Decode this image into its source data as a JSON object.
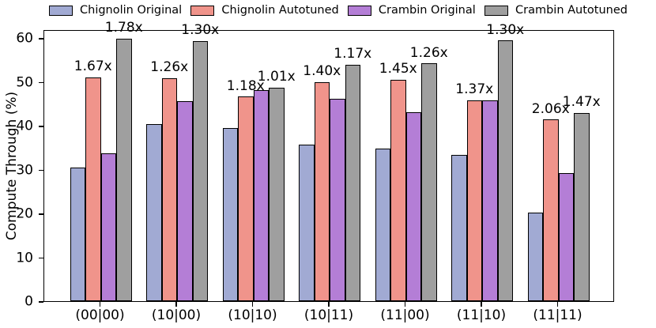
{
  "chart_data": {
    "type": "bar",
    "title": "",
    "xlabel": "",
    "ylabel": "Compute Through (%)",
    "ylim": [
      0,
      62
    ],
    "yticks": [
      0,
      10,
      20,
      30,
      40,
      50,
      60
    ],
    "grid": false,
    "legend_position": "top",
    "bar_edge_color": "#000000",
    "categories": [
      "(00|00)",
      "(10|00)",
      "(10|10)",
      "(10|11)",
      "(11|00)",
      "(11|10)",
      "(11|11)"
    ],
    "series": [
      {
        "name": "Chignolin Original",
        "color": "#a1aad3",
        "values": [
          30.5,
          40.3,
          39.5,
          35.7,
          34.8,
          33.4,
          20.1
        ]
      },
      {
        "name": "Chignolin Autotuned",
        "color": "#f0948b",
        "values": [
          51.0,
          50.8,
          46.6,
          50.0,
          50.5,
          45.8,
          41.4
        ]
      },
      {
        "name": "Crambin Original",
        "color": "#b47ed6",
        "values": [
          33.7,
          45.6,
          48.2,
          46.1,
          43.0,
          45.7,
          29.2
        ]
      },
      {
        "name": "Crambin Autotuned",
        "color": "#9f9f9f",
        "values": [
          59.9,
          59.3,
          48.7,
          53.9,
          54.2,
          59.4,
          42.9
        ]
      }
    ],
    "annotations": [
      {
        "over_series": 1,
        "labels": [
          "1.67x",
          "1.26x",
          "1.18x",
          "1.40x",
          "1.45x",
          "1.37x",
          "2.06x"
        ]
      },
      {
        "over_series": 3,
        "labels": [
          "1.78x",
          "1.30x",
          "1.01x",
          "1.17x",
          "1.26x",
          "1.30x",
          "1.47x"
        ]
      }
    ]
  }
}
